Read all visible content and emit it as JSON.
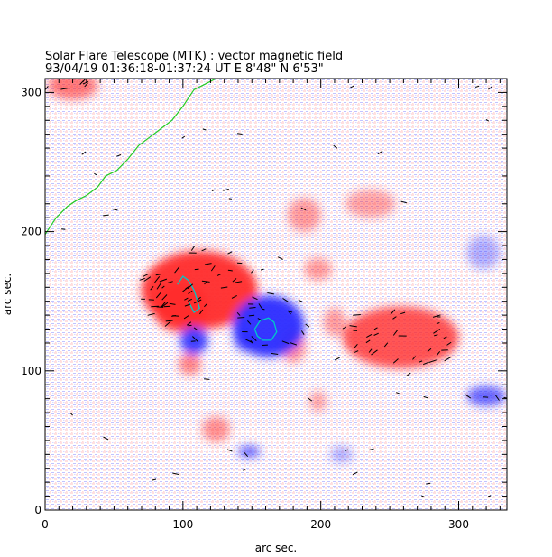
{
  "chart_data": {
    "type": "heatmap",
    "title": "Solar Flare Telescope (MTK) : vector magnetic field",
    "subtitle": "93/04/19  01:36:18-01:37:24 UT     E 8'48\"   N 6'53\"",
    "xlabel": "arc sec.",
    "ylabel": "arc sec.",
    "xlim": [
      0,
      335
    ],
    "ylim": [
      0,
      310
    ],
    "x_ticks": [
      0,
      100,
      200,
      300
    ],
    "y_ticks": [
      0,
      100,
      200,
      300
    ],
    "colors": {
      "positive_polarity": "#ff2a2a",
      "negative_polarity": "#2b2bff",
      "limb_contour": "#22cc22",
      "neutral_line": "#00c8c8",
      "vectors": "#000000"
    },
    "regions": [
      {
        "polarity": "positive",
        "x": 112,
        "y": 158,
        "rx": 42,
        "ry": 28,
        "strength": 0.95
      },
      {
        "polarity": "positive",
        "x": 98,
        "y": 146,
        "rx": 20,
        "ry": 18,
        "strength": 0.85
      },
      {
        "polarity": "positive",
        "x": 258,
        "y": 124,
        "rx": 42,
        "ry": 22,
        "strength": 0.8
      },
      {
        "polarity": "positive",
        "x": 210,
        "y": 135,
        "rx": 8,
        "ry": 10,
        "strength": 0.45
      },
      {
        "polarity": "positive",
        "x": 198,
        "y": 173,
        "rx": 10,
        "ry": 8,
        "strength": 0.45
      },
      {
        "polarity": "positive",
        "x": 180,
        "y": 118,
        "rx": 9,
        "ry": 12,
        "strength": 0.5
      },
      {
        "polarity": "positive",
        "x": 105,
        "y": 105,
        "rx": 8,
        "ry": 8,
        "strength": 0.55
      },
      {
        "polarity": "positive",
        "x": 124,
        "y": 58,
        "rx": 10,
        "ry": 9,
        "strength": 0.5
      },
      {
        "polarity": "positive",
        "x": 198,
        "y": 78,
        "rx": 6,
        "ry": 7,
        "strength": 0.4
      },
      {
        "polarity": "positive",
        "x": 236,
        "y": 220,
        "rx": 18,
        "ry": 10,
        "strength": 0.4
      },
      {
        "polarity": "positive",
        "x": 188,
        "y": 212,
        "rx": 12,
        "ry": 12,
        "strength": 0.45
      },
      {
        "polarity": "positive",
        "x": 20,
        "y": 305,
        "rx": 18,
        "ry": 10,
        "strength": 0.6
      },
      {
        "polarity": "negative",
        "x": 162,
        "y": 132,
        "rx": 26,
        "ry": 22,
        "strength": 0.95
      },
      {
        "polarity": "negative",
        "x": 108,
        "y": 122,
        "rx": 10,
        "ry": 10,
        "strength": 0.9
      },
      {
        "polarity": "negative",
        "x": 145,
        "y": 122,
        "rx": 8,
        "ry": 8,
        "strength": 0.6
      },
      {
        "polarity": "negative",
        "x": 320,
        "y": 82,
        "rx": 14,
        "ry": 7,
        "strength": 0.7
      },
      {
        "polarity": "negative",
        "x": 148,
        "y": 42,
        "rx": 8,
        "ry": 4,
        "strength": 0.75
      },
      {
        "polarity": "negative",
        "x": 318,
        "y": 185,
        "rx": 12,
        "ry": 12,
        "strength": 0.35
      },
      {
        "polarity": "negative",
        "x": 215,
        "y": 40,
        "rx": 8,
        "ry": 6,
        "strength": 0.35
      }
    ],
    "limb_contour": {
      "x": [
        0,
        8,
        16,
        22,
        30,
        38,
        44,
        52,
        60,
        68,
        76,
        84,
        92,
        100,
        104,
        108,
        116,
        124
      ],
      "y": [
        198,
        210,
        218,
        222,
        226,
        232,
        240,
        244,
        252,
        262,
        268,
        274,
        280,
        290,
        296,
        302,
        306,
        310
      ]
    },
    "neutral_lines": [
      {
        "x": [
          96,
          100,
          104,
          108,
          110,
          112,
          108,
          104
        ],
        "y": [
          162,
          168,
          165,
          158,
          152,
          145,
          142,
          150
        ]
      },
      {
        "x": [
          152,
          156,
          162,
          166,
          168,
          164,
          158,
          154,
          152
        ],
        "y": [
          130,
          136,
          138,
          135,
          128,
          122,
          122,
          125,
          130
        ]
      }
    ]
  }
}
